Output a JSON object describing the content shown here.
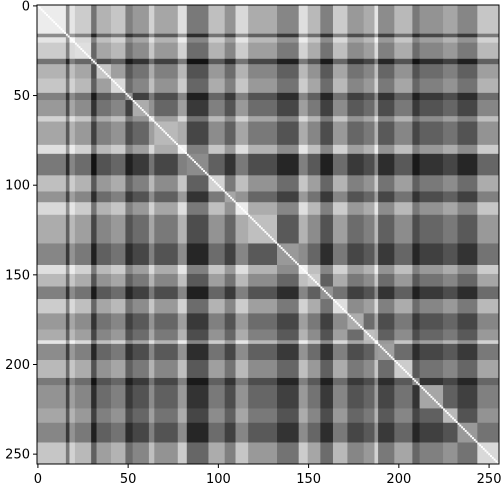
{
  "chart_data": {
    "type": "heatmap",
    "colormap": "gray",
    "matrix_size": 256,
    "diagonal_value": 1.0,
    "xlim": [
      -0.5,
      255.5
    ],
    "ylim": [
      255.5,
      -0.5
    ],
    "xticks": [
      0,
      50,
      100,
      150,
      200,
      250
    ],
    "yticks": [
      0,
      50,
      100,
      150,
      200,
      250
    ],
    "xtick_labels": [
      "0",
      "50",
      "100",
      "150",
      "200",
      "250"
    ],
    "ytick_labels": [
      "0",
      "50",
      "100",
      "150",
      "200",
      "250"
    ],
    "grid": false,
    "legend": "none",
    "block_boundaries": [
      0,
      16,
      18,
      21,
      30,
      33,
      41,
      49,
      53,
      62,
      65,
      78,
      83,
      95,
      104,
      110,
      117,
      133,
      145,
      150,
      157,
      164,
      172,
      181,
      187,
      189,
      198,
      208,
      212,
      225,
      233,
      244,
      256
    ],
    "block_gray_levels": [
      0.85,
      0.25,
      0.95,
      0.75,
      0.05,
      0.55,
      0.7,
      0.15,
      0.35,
      0.8,
      0.45,
      0.9,
      0.1,
      0.65,
      0.3,
      0.85,
      0.5,
      0.2,
      0.9,
      0.6,
      0.15,
      0.75,
      0.35,
      0.5,
      0.95,
      0.25,
      0.6,
      0.1,
      0.3,
      0.45,
      0.2,
      0.7
    ],
    "title": "",
    "xlabel": "",
    "ylabel": ""
  }
}
